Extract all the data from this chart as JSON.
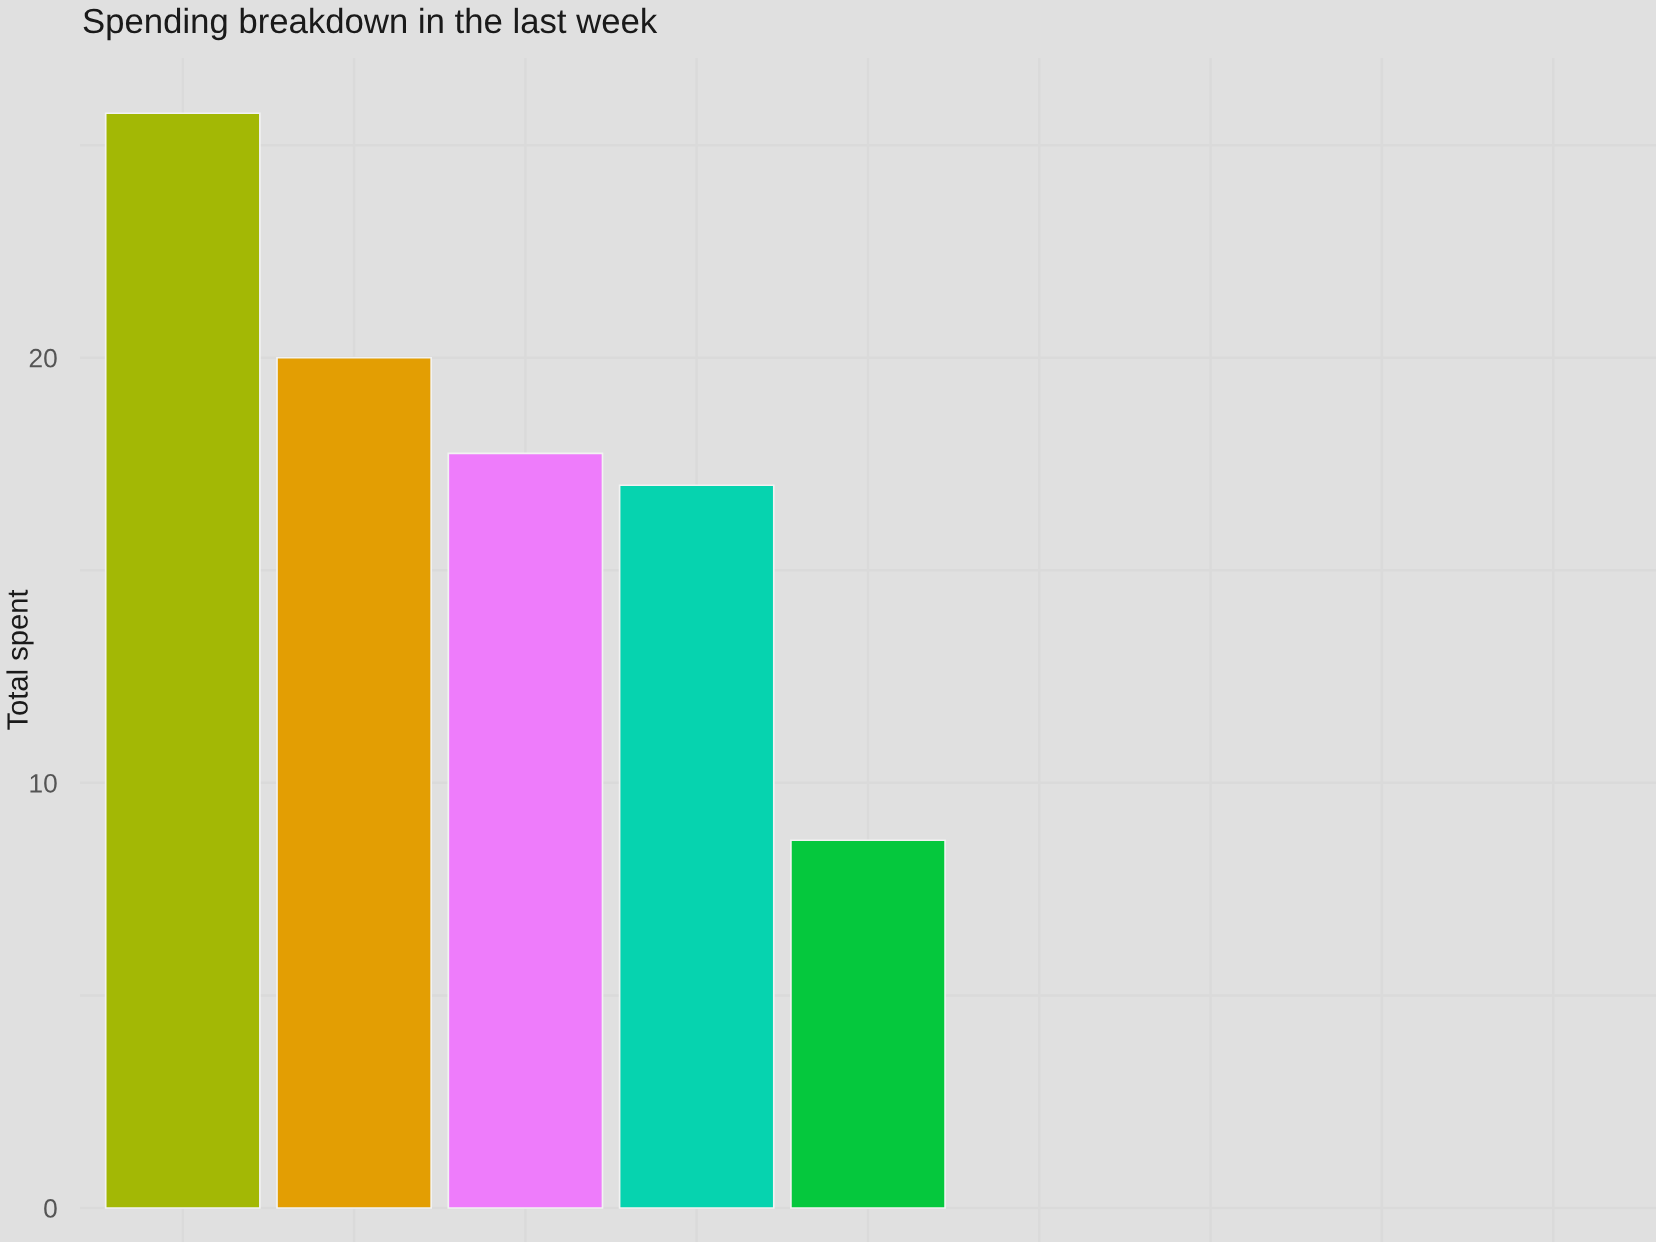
{
  "chart_data": {
    "type": "bar",
    "title": "Spending breakdown in the last week",
    "ylabel": "Total spent",
    "categories": [
      null,
      null,
      null,
      null,
      null,
      null,
      null,
      null,
      null
    ],
    "values": [
      25.75,
      20.0,
      17.75,
      17.0,
      8.65,
      null,
      null,
      null,
      null
    ],
    "colors": [
      "#a3b805",
      "#e39e03",
      "#ee7cfb",
      "#06d3af",
      "#05c83d",
      null,
      null,
      null,
      null
    ],
    "ylim": [
      -0.8,
      27.05
    ],
    "yticks": [
      0,
      {
        "value": 5,
        "label": null
      },
      10,
      {
        "value": 15,
        "label": null
      },
      20,
      {
        "value": 25,
        "label": null
      }
    ],
    "grid": true,
    "tick_labels": "y"
  }
}
